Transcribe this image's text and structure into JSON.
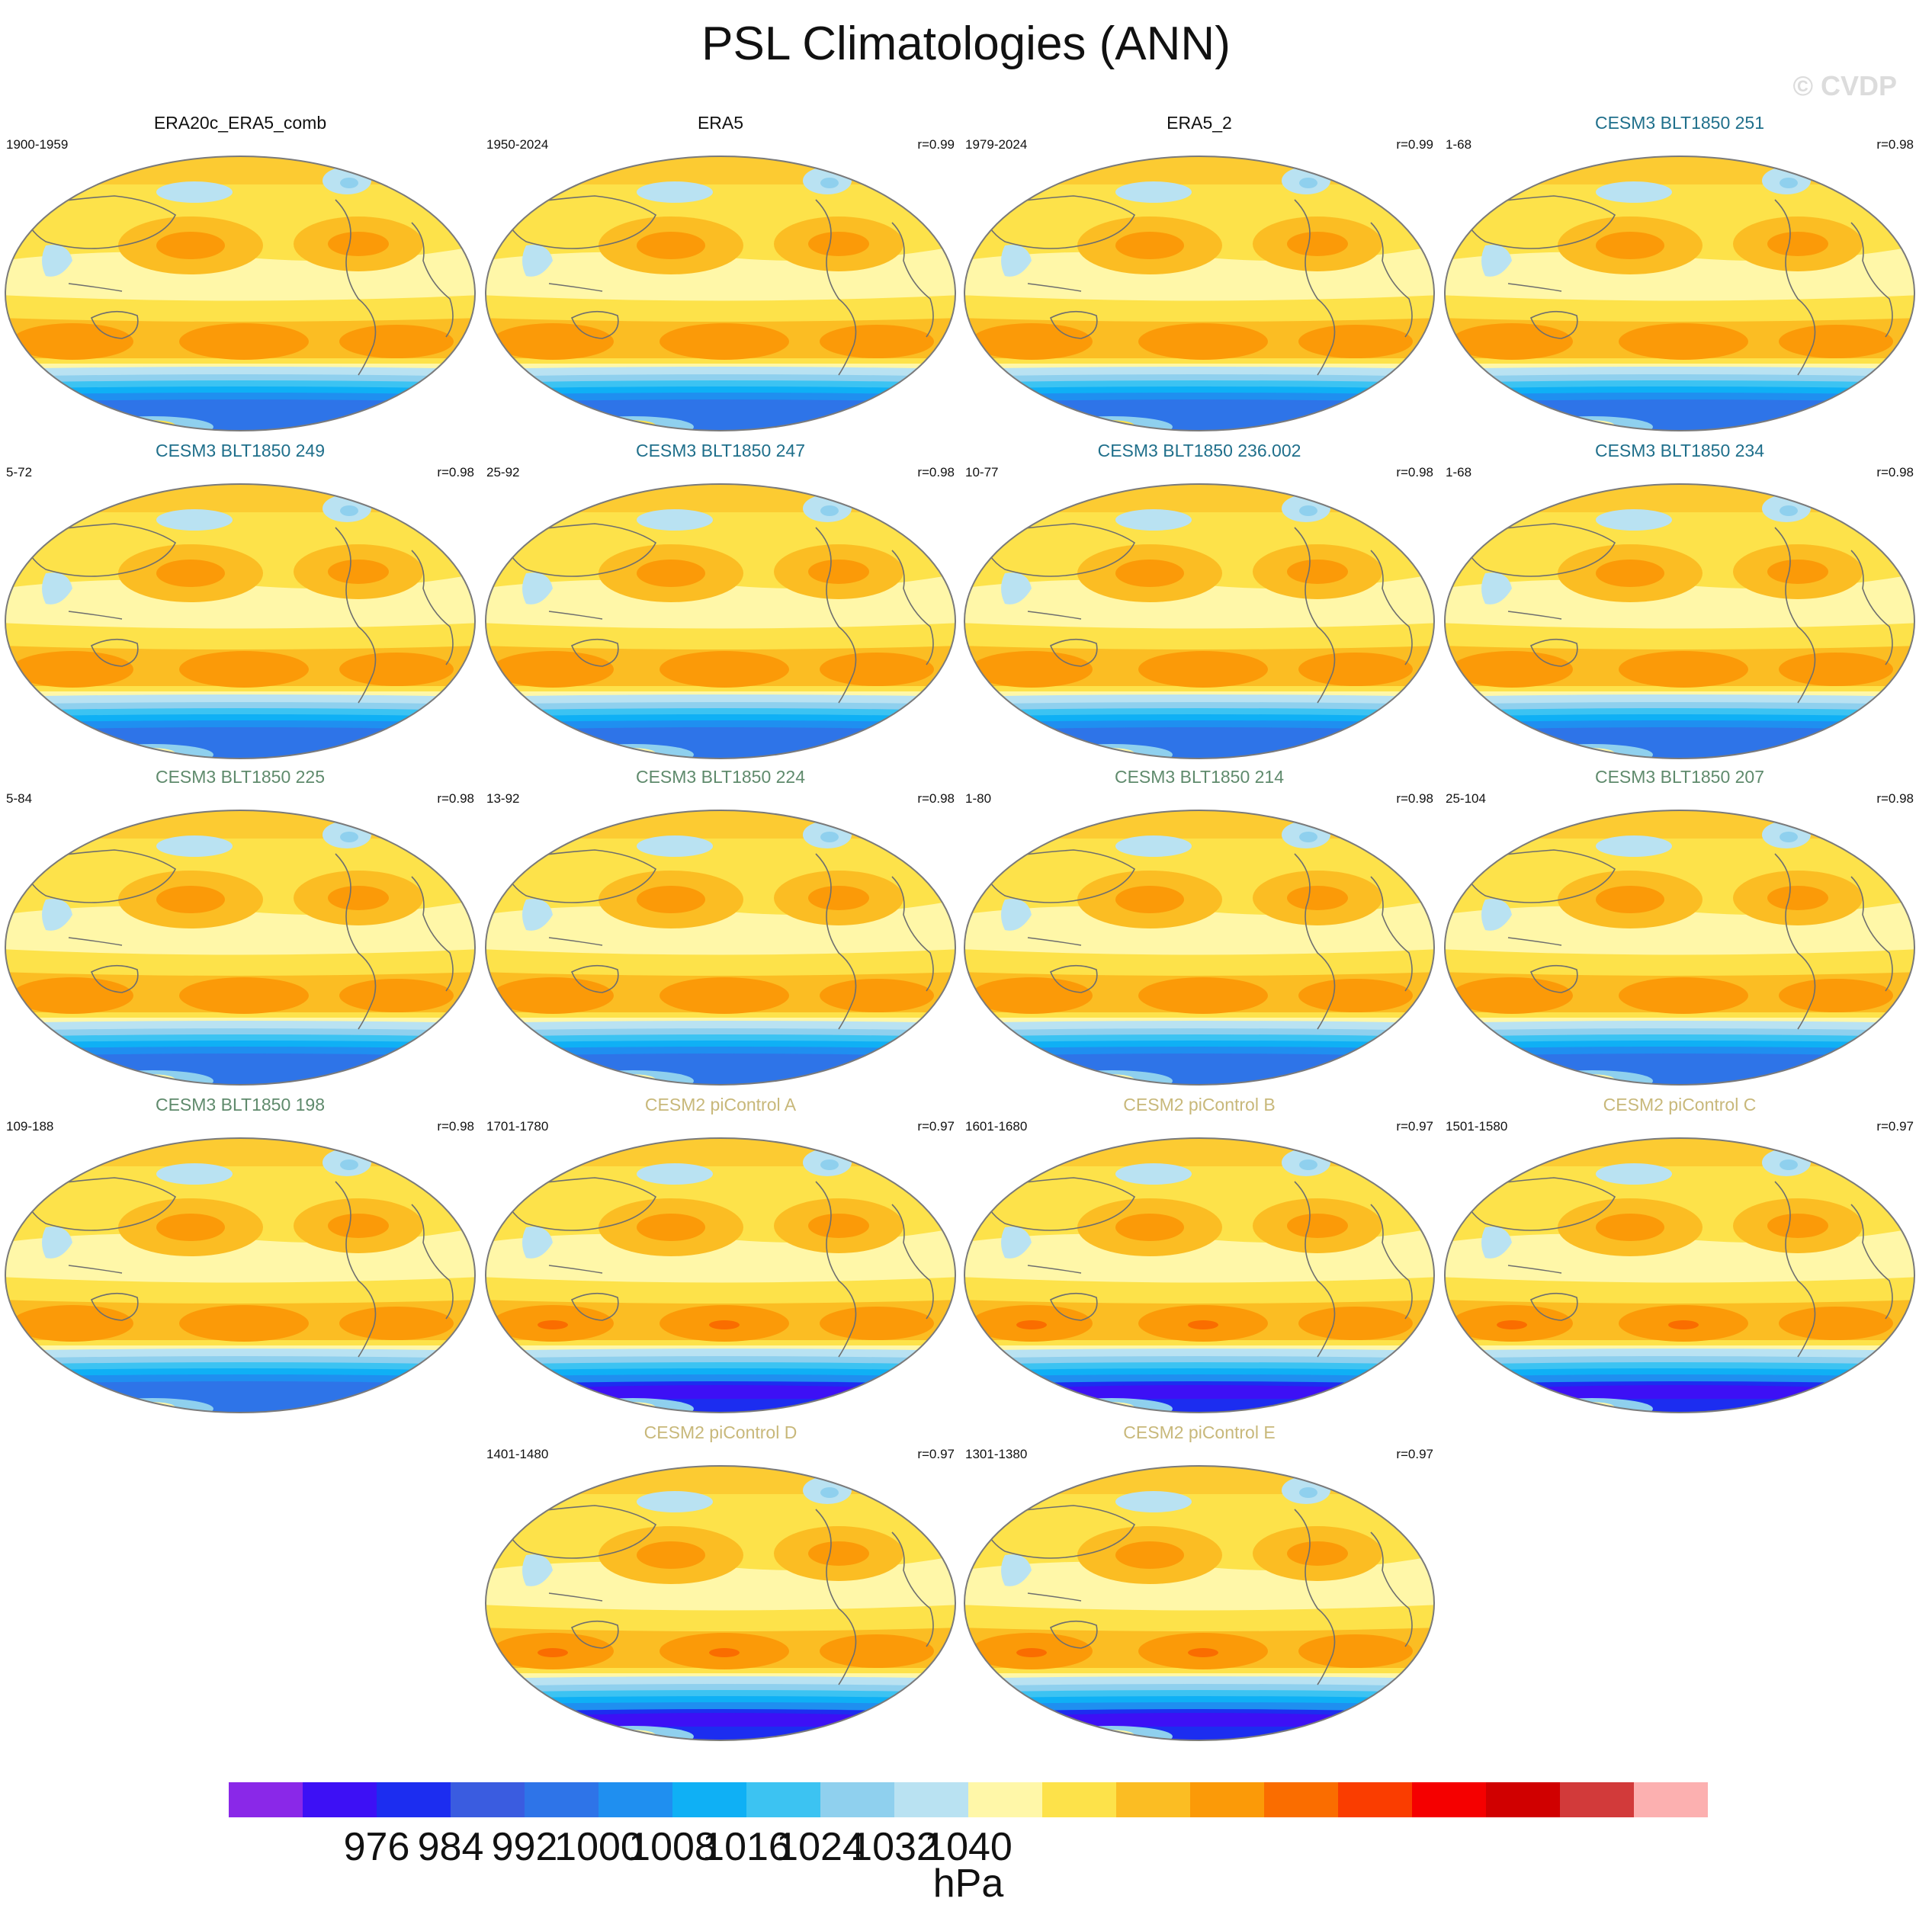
{
  "title": "PSL Climatologies (ANN)",
  "watermark": "© CVDP",
  "panels": [
    {
      "name": "ERA20c_ERA5_comb",
      "years": "1900-1959",
      "corr": "",
      "title_color": "#111111"
    },
    {
      "name": "ERA5",
      "years": "1950-2024",
      "corr": "r=0.99",
      "title_color": "#111111"
    },
    {
      "name": "ERA5_2",
      "years": "1979-2024",
      "corr": "r=0.99",
      "title_color": "#111111"
    },
    {
      "name": "CESM3 BLT1850 251",
      "years": "1-68",
      "corr": "r=0.98",
      "title_color": "#1f6f8b"
    },
    {
      "name": "CESM3 BLT1850 249",
      "years": "5-72",
      "corr": "r=0.98",
      "title_color": "#1f6f8b"
    },
    {
      "name": "CESM3 BLT1850 247",
      "years": "25-92",
      "corr": "r=0.98",
      "title_color": "#1f6f8b"
    },
    {
      "name": "CESM3 BLT1850 236.002",
      "years": "10-77",
      "corr": "r=0.98",
      "title_color": "#1f6f8b"
    },
    {
      "name": "CESM3 BLT1850 234",
      "years": "1-68",
      "corr": "r=0.98",
      "title_color": "#1f6f8b"
    },
    {
      "name": "CESM3 BLT1850 225",
      "years": "5-84",
      "corr": "r=0.98",
      "title_color": "#5f8a6c"
    },
    {
      "name": "CESM3 BLT1850 224",
      "years": "13-92",
      "corr": "r=0.98",
      "title_color": "#5f8a6c"
    },
    {
      "name": "CESM3 BLT1850 214",
      "years": "1-80",
      "corr": "r=0.98",
      "title_color": "#5f8a6c"
    },
    {
      "name": "CESM3 BLT1850 207",
      "years": "25-104",
      "corr": "r=0.98",
      "title_color": "#5f8a6c"
    },
    {
      "name": "CESM3 BLT1850 198",
      "years": "109-188",
      "corr": "r=0.98",
      "title_color": "#5f8a6c"
    },
    {
      "name": "CESM2 piControl A",
      "years": "1701-1780",
      "corr": "r=0.97",
      "title_color": "#c8b87a"
    },
    {
      "name": "CESM2 piControl B",
      "years": "1601-1680",
      "corr": "r=0.97",
      "title_color": "#c8b87a"
    },
    {
      "name": "CESM2 piControl C",
      "years": "1501-1580",
      "corr": "r=0.97",
      "title_color": "#c8b87a"
    },
    {
      "name": "CESM2 piControl D",
      "years": "1401-1480",
      "corr": "r=0.97",
      "title_color": "#c8b87a"
    },
    {
      "name": "CESM2 piControl E",
      "years": "1301-1380",
      "corr": "r=0.97",
      "title_color": "#c8b87a"
    }
  ],
  "chart_data": {
    "type": "heatmap",
    "variable": "PSL",
    "season": "ANN",
    "units": "hPa",
    "colorbar": {
      "colors": [
        "#8a28e8",
        "#3d10f5",
        "#1c2df0",
        "#3a5ce0",
        "#2e74e8",
        "#1f8ff0",
        "#0fb0f5",
        "#3cc3f2",
        "#8fd0ee",
        "#b9e2f2",
        "#fff7a8",
        "#fde24a",
        "#fbbd23",
        "#fb9a08",
        "#fa6d00",
        "#fa3d00",
        "#f50000",
        "#d00000",
        "#d23a3a",
        "#fcb0b0"
      ],
      "tick_values": [
        976,
        984,
        992,
        1000,
        1008,
        1016,
        1024,
        1032,
        1040
      ]
    }
  }
}
